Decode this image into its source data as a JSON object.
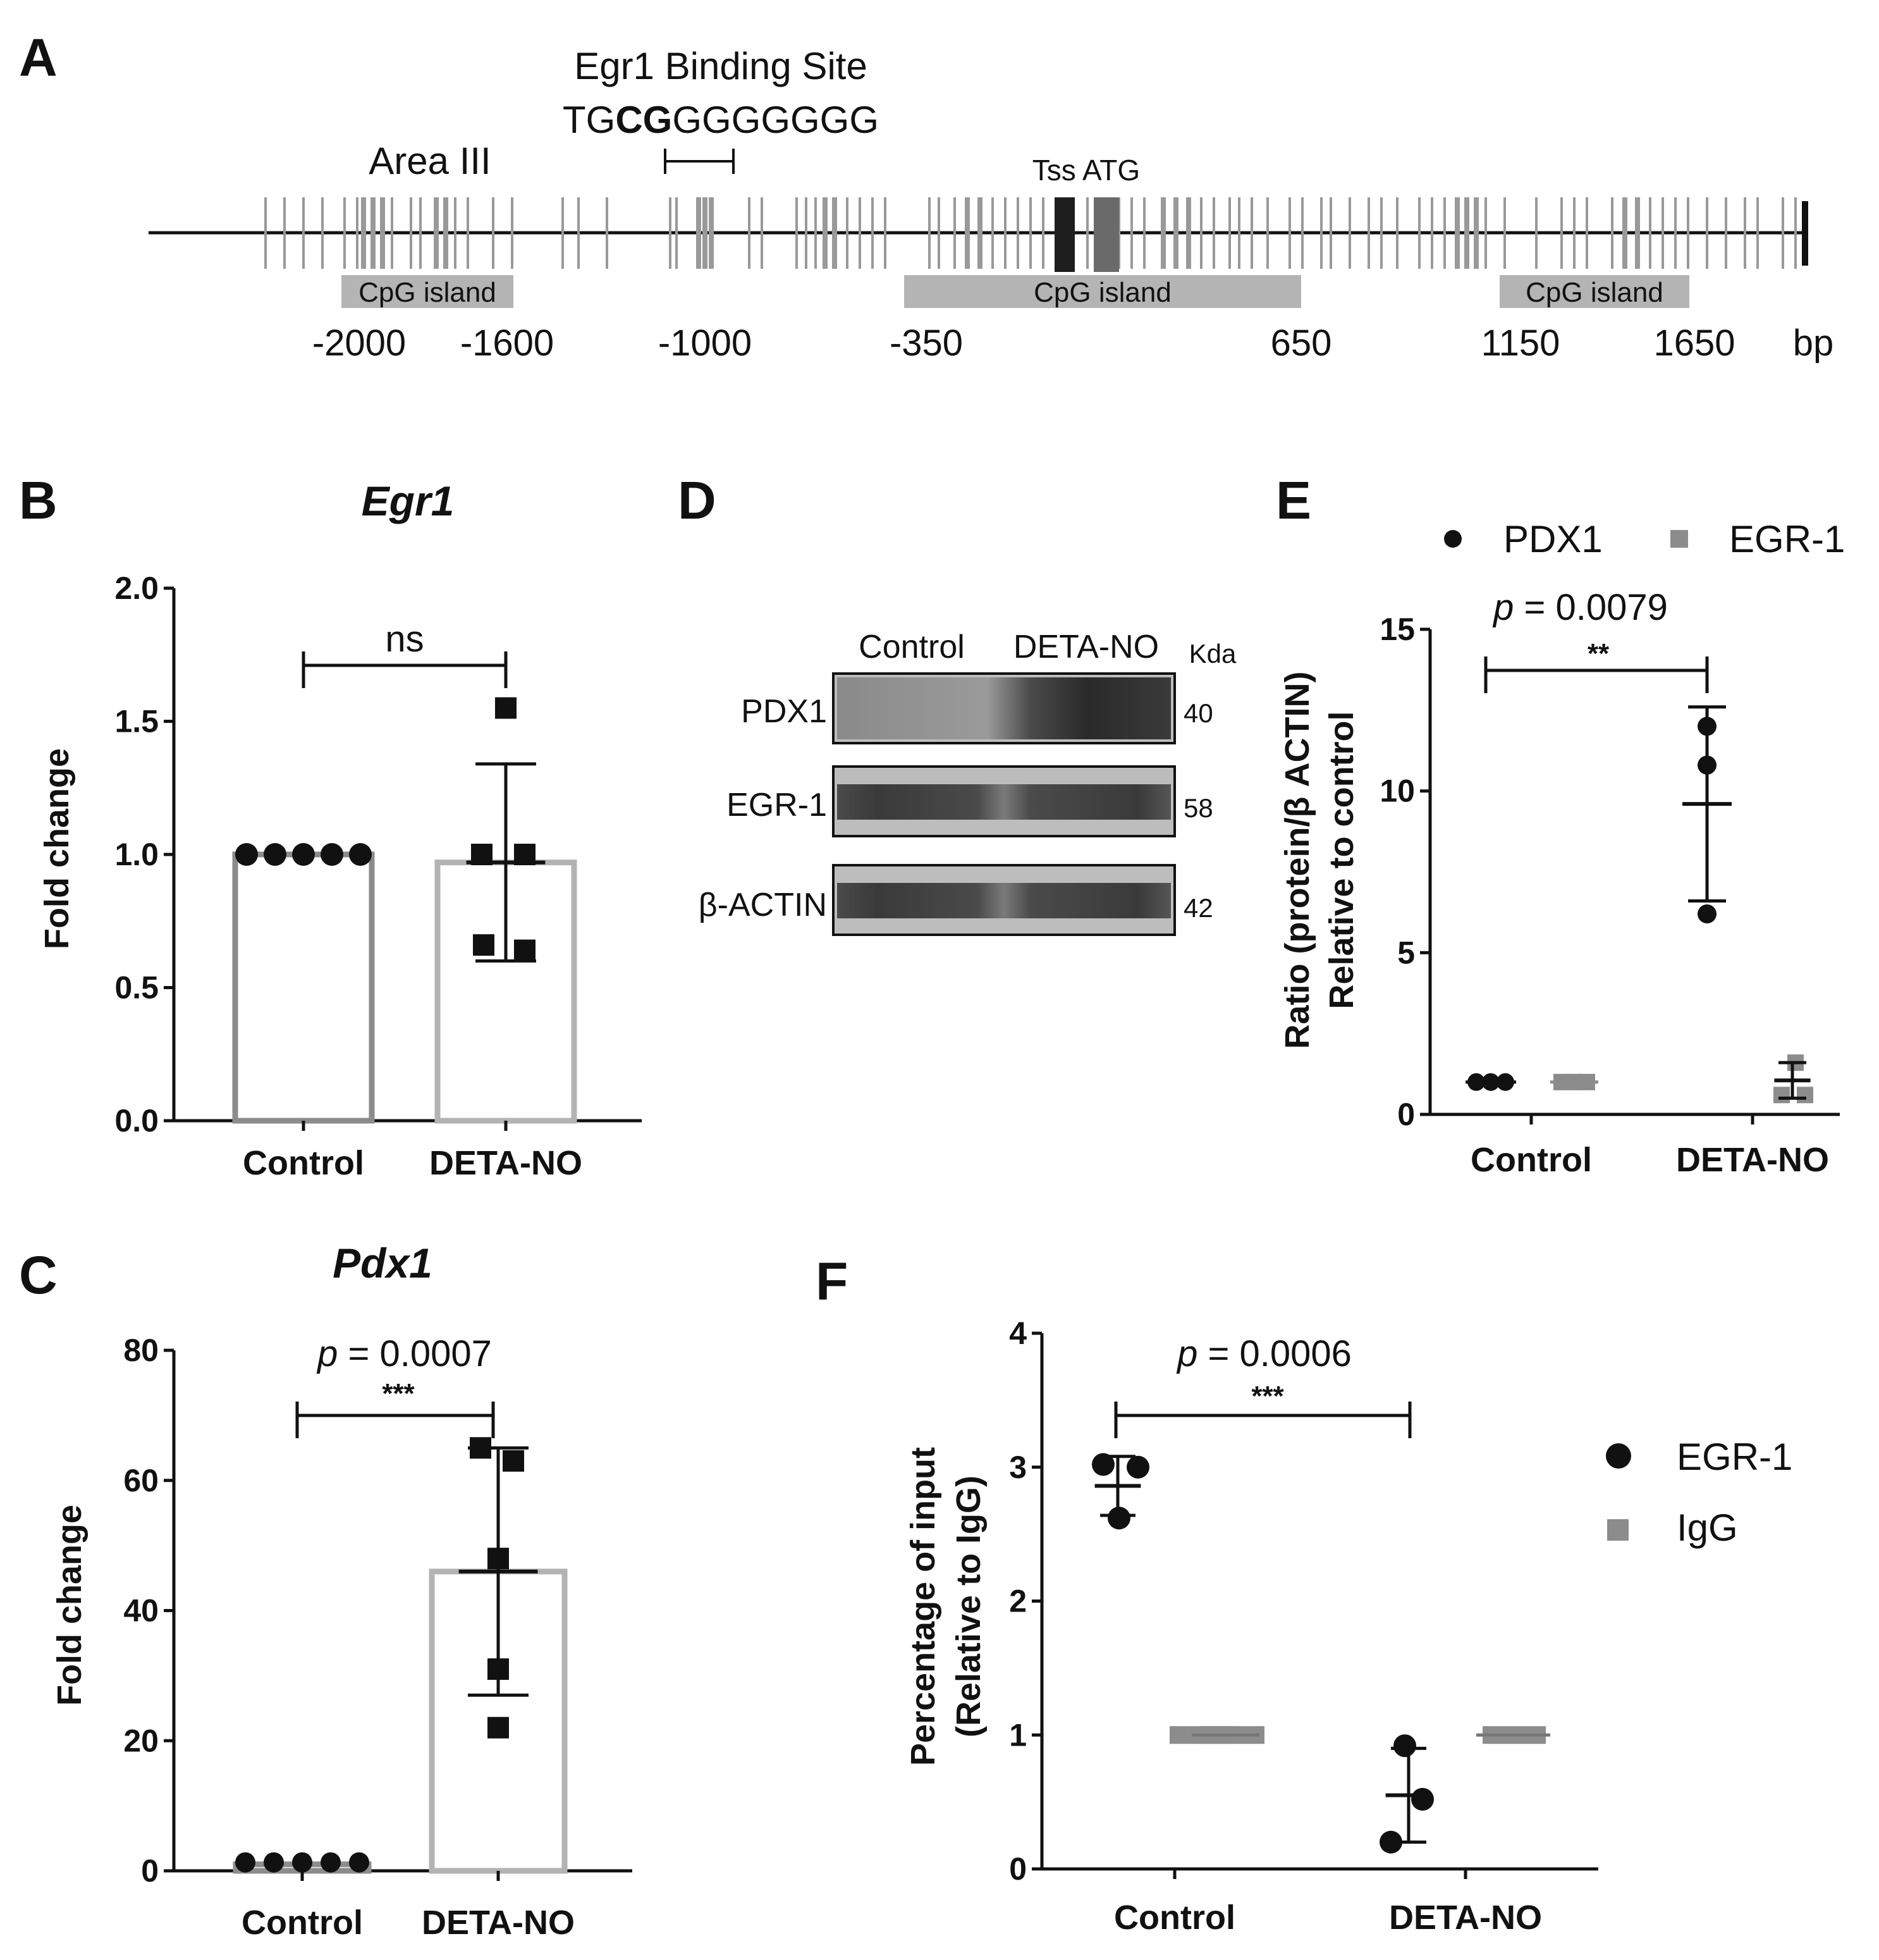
{
  "panels": {
    "A": {
      "label": "A",
      "binding_title": "Egr1 Binding Site",
      "seq_a": "TG",
      "seq_b": "CG",
      "seq_c": "GGGGGGG",
      "area": "Area III",
      "tss_atg": "Tss ATG",
      "cpg_label": "CpG island",
      "positions": [
        "-2000",
        "-1600",
        "-1000",
        "-350",
        "650",
        "1150",
        "1650"
      ],
      "unit": "bp"
    },
    "B": {
      "label": "B",
      "title": "Egr1",
      "ylabel": "Fold change",
      "yticks": [
        "0.0",
        "0.5",
        "1.0",
        "1.5",
        "2.0"
      ],
      "categories": [
        "Control",
        "DETA-NO"
      ],
      "annotation": "ns"
    },
    "C": {
      "label": "C",
      "title": "Pdx1",
      "ylabel": "Fold change",
      "yticks": [
        "0",
        "20",
        "40",
        "60",
        "80"
      ],
      "categories": [
        "Control",
        "DETA-NO"
      ],
      "p_prefix": "p",
      "p_value": " = 0.0007",
      "stars": "***"
    },
    "D": {
      "label": "D",
      "lanes": [
        "Control",
        "DETA-NO"
      ],
      "unit": "Kda",
      "bands": [
        {
          "protein": "PDX1",
          "kda": "40"
        },
        {
          "protein": "EGR-1",
          "kda": "58"
        },
        {
          "protein": "β-ACTIN",
          "kda": "42"
        }
      ]
    },
    "E": {
      "label": "E",
      "legend": [
        "PDX1",
        "EGR-1"
      ],
      "ylabel_1": "Ratio (protein/β ACTIN)",
      "ylabel_2": "Relative to control",
      "yticks": [
        "0",
        "5",
        "10",
        "15"
      ],
      "categories": [
        "Control",
        "DETA-NO"
      ],
      "p_prefix": "p",
      "p_value": " = 0.0079",
      "stars": "**"
    },
    "F": {
      "label": "F",
      "legend": [
        "EGR-1",
        "IgG"
      ],
      "ylabel_1": "Percentage of input",
      "ylabel_2": "(Relative to IgG)",
      "yticks": [
        "0",
        "1",
        "2",
        "3",
        "4"
      ],
      "categories": [
        "Control",
        "DETA-NO"
      ],
      "p_prefix": "p",
      "p_value": " = 0.0006",
      "stars": "***"
    }
  },
  "colors": {
    "dark": "#111111",
    "grey": "#8c8c8c",
    "bar_light": "#b3b3b3",
    "island": "#b4b4b4"
  },
  "chart_data": [
    {
      "panel": "B",
      "type": "bar",
      "title": "Egr1",
      "ylabel": "Fold change",
      "ylim": [
        0,
        2.0
      ],
      "categories": [
        "Control",
        "DETA-NO"
      ],
      "bar_means": [
        1.0,
        0.97
      ],
      "sd_upper": [
        1.0,
        1.34
      ],
      "sd_lower": [
        1.0,
        0.6
      ],
      "points": [
        [
          1.0,
          1.0,
          1.0,
          1.0,
          1.0
        ],
        [
          1.55,
          1.0,
          1.0,
          0.64,
          0.66
        ]
      ],
      "annotation": "ns"
    },
    {
      "panel": "C",
      "type": "bar",
      "title": "Pdx1",
      "ylabel": "Fold change",
      "ylim": [
        0,
        80
      ],
      "categories": [
        "Control",
        "DETA-NO"
      ],
      "bar_means": [
        1.0,
        46
      ],
      "sd_upper": [
        1.0,
        65
      ],
      "sd_lower": [
        1.0,
        27
      ],
      "points": [
        [
          1,
          1,
          1,
          1,
          1
        ],
        [
          65,
          63,
          48,
          31,
          22
        ]
      ],
      "annotation": "p = 0.0007 ***"
    },
    {
      "panel": "E",
      "type": "scatter",
      "ylabel": "Ratio (protein/β ACTIN) Relative to control",
      "ylim": [
        0,
        15
      ],
      "categories": [
        "Control",
        "DETA-NO"
      ],
      "series": [
        {
          "name": "PDX1",
          "points": [
            [
              1,
              1,
              1
            ],
            [
              12,
              10.8,
              6.2
            ]
          ],
          "means": [
            1,
            9.6
          ],
          "sd_upper": [
            1,
            12.6
          ],
          "sd_lower": [
            1,
            6.6
          ]
        },
        {
          "name": "EGR-1",
          "points": [
            [
              1,
              1,
              1
            ],
            [
              1.6,
              0.6,
              0.6
            ]
          ],
          "means": [
            1,
            1.05
          ],
          "sd_upper": [
            1,
            1.6
          ],
          "sd_lower": [
            1,
            0.5
          ]
        }
      ],
      "annotation": "p = 0.0079 **"
    },
    {
      "panel": "F",
      "type": "scatter",
      "ylabel": "Percentage of input (Relative to IgG)",
      "ylim": [
        0,
        4
      ],
      "categories": [
        "Control",
        "DETA-NO"
      ],
      "series": [
        {
          "name": "EGR-1",
          "points": [
            [
              3.02,
              3.0,
              2.62
            ],
            [
              0.92,
              0.52,
              0.2
            ]
          ],
          "means": [
            2.86,
            0.55
          ],
          "sd_upper": [
            3.08,
            0.9
          ],
          "sd_lower": [
            2.64,
            0.2
          ]
        },
        {
          "name": "IgG",
          "points": [
            [
              1,
              1,
              1
            ],
            [
              1,
              1,
              1
            ]
          ],
          "means": [
            1,
            1
          ]
        }
      ],
      "annotation": "p = 0.0006 ***"
    }
  ]
}
